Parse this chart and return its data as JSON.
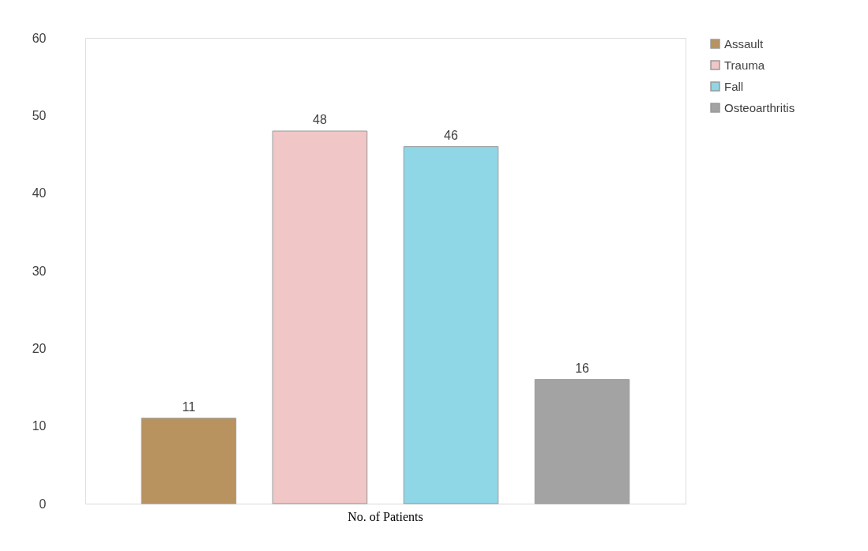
{
  "chart_data": {
    "type": "bar",
    "categories": [
      "No. of Patients"
    ],
    "series": [
      {
        "name": "Assault",
        "color": "#b8925f",
        "values": [
          11
        ]
      },
      {
        "name": "Trauma",
        "color": "#f0c6c6",
        "values": [
          48
        ]
      },
      {
        "name": "Fall",
        "color": "#8fd6e6",
        "values": [
          46
        ]
      },
      {
        "name": "Osteoarthritis",
        "color": "#a3a3a3",
        "values": [
          16
        ]
      }
    ],
    "ylim": [
      0,
      60
    ],
    "yticks": [
      0,
      10,
      20,
      30,
      40,
      50,
      60
    ],
    "grid": false,
    "legend": "right",
    "data_labels": true
  }
}
